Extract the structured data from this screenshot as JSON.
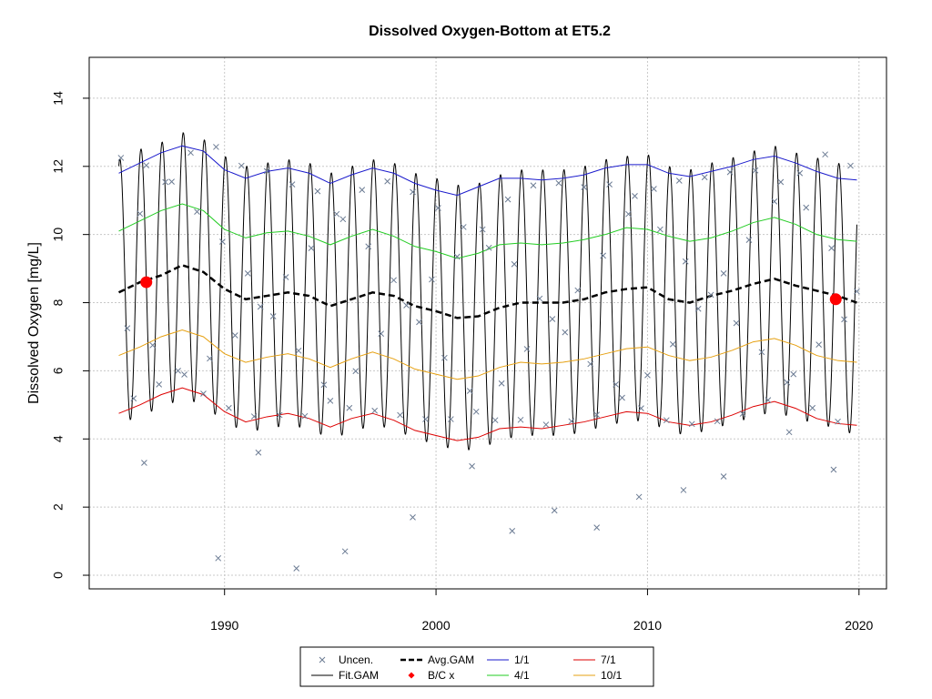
{
  "chart_data": {
    "type": "line",
    "title": "Dissolved Oxygen-Bottom at ET5.2",
    "xlabel": "",
    "ylabel": "Dissolved Oxygen [mg/L]",
    "xlim": [
      1983.6,
      2021.3
    ],
    "ylim": [
      -0.4,
      15.2
    ],
    "x_ticks": [
      1990,
      2000,
      2010,
      2020
    ],
    "y_ticks": [
      0,
      2,
      4,
      6,
      8,
      10,
      12,
      14
    ],
    "grid": true,
    "legend_position": "bottom-center",
    "legend": [
      {
        "label": "Uncen.",
        "kind": "x-marker",
        "color": "#6b7b93"
      },
      {
        "label": "Fit.GAM",
        "kind": "line",
        "color": "#000000"
      },
      {
        "label": "Avg.GAM",
        "kind": "dashed",
        "color": "#000000"
      },
      {
        "label": "B/C x",
        "kind": "dot",
        "color": "#ff0000"
      },
      {
        "label": "1/1",
        "kind": "line",
        "color": "#1a1acc"
      },
      {
        "label": "4/1",
        "kind": "line",
        "color": "#22cc22"
      },
      {
        "label": "7/1",
        "kind": "line",
        "color": "#dd0000"
      },
      {
        "label": "10/1",
        "kind": "line",
        "color": "#e6a010"
      }
    ],
    "x_range": [
      1985,
      2019.9
    ],
    "seasonal_amplitude": 3.9,
    "avg_gam": {
      "x": [
        1985,
        1986,
        1987,
        1988,
        1989,
        1990,
        1991,
        1992,
        1993,
        1994,
        1995,
        1996,
        1997,
        1998,
        1999,
        2000,
        2001,
        2002,
        2003,
        2004,
        2005,
        2006,
        2007,
        2008,
        2009,
        2010,
        2011,
        2012,
        2013,
        2014,
        2015,
        2016,
        2017,
        2018,
        2019,
        2019.9
      ],
      "y": [
        8.3,
        8.6,
        8.8,
        9.1,
        8.9,
        8.4,
        8.1,
        8.2,
        8.3,
        8.2,
        7.9,
        8.1,
        8.3,
        8.2,
        7.9,
        7.75,
        7.55,
        7.6,
        7.85,
        8.0,
        8.0,
        8.0,
        8.1,
        8.3,
        8.4,
        8.45,
        8.1,
        8.0,
        8.2,
        8.35,
        8.55,
        8.7,
        8.5,
        8.35,
        8.2,
        8.0
      ]
    },
    "bc_points": [
      {
        "x": 1986.3,
        "y": 8.6
      },
      {
        "x": 2018.9,
        "y": 8.1
      }
    ],
    "series": [
      {
        "name": "1/1",
        "color": "#1a1acc",
        "x": [
          1985,
          1986,
          1987,
          1988,
          1989,
          1990,
          1991,
          1992,
          1993,
          1994,
          1995,
          1996,
          1997,
          1998,
          1999,
          2000,
          2001,
          2002,
          2003,
          2004,
          2005,
          2006,
          2007,
          2008,
          2009,
          2010,
          2011,
          2012,
          2013,
          2014,
          2015,
          2016,
          2017,
          2018,
          2019,
          2019.9
        ],
        "y": [
          11.8,
          12.1,
          12.4,
          12.6,
          12.45,
          11.9,
          11.65,
          11.85,
          11.95,
          11.8,
          11.5,
          11.75,
          11.95,
          11.8,
          11.5,
          11.3,
          11.15,
          11.4,
          11.65,
          11.65,
          11.6,
          11.65,
          11.75,
          11.95,
          12.05,
          12.05,
          11.8,
          11.7,
          11.85,
          12.0,
          12.2,
          12.3,
          12.1,
          11.85,
          11.65,
          11.6
        ]
      },
      {
        "name": "4/1",
        "color": "#22cc22",
        "x": [
          1985,
          1986,
          1987,
          1988,
          1989,
          1990,
          1991,
          1992,
          1993,
          1994,
          1995,
          1996,
          1997,
          1998,
          1999,
          2000,
          2001,
          2002,
          2003,
          2004,
          2005,
          2006,
          2007,
          2008,
          2009,
          2010,
          2011,
          2012,
          2013,
          2014,
          2015,
          2016,
          2017,
          2018,
          2019,
          2019.9
        ],
        "y": [
          10.1,
          10.4,
          10.7,
          10.9,
          10.7,
          10.15,
          9.9,
          10.05,
          10.1,
          9.95,
          9.7,
          9.95,
          10.15,
          9.95,
          9.65,
          9.5,
          9.3,
          9.45,
          9.7,
          9.75,
          9.7,
          9.75,
          9.85,
          10.0,
          10.2,
          10.15,
          9.95,
          9.8,
          9.9,
          10.1,
          10.35,
          10.5,
          10.3,
          10.0,
          9.85,
          9.8
        ]
      },
      {
        "name": "7/1",
        "color": "#dd0000",
        "x": [
          1985,
          1986,
          1987,
          1988,
          1989,
          1990,
          1991,
          1992,
          1993,
          1994,
          1995,
          1996,
          1997,
          1998,
          1999,
          2000,
          2001,
          2002,
          2003,
          2004,
          2005,
          2006,
          2007,
          2008,
          2009,
          2010,
          2011,
          2012,
          2013,
          2014,
          2015,
          2016,
          2017,
          2018,
          2019,
          2019.9
        ],
        "y": [
          4.75,
          5.0,
          5.3,
          5.5,
          5.3,
          4.8,
          4.5,
          4.65,
          4.75,
          4.6,
          4.35,
          4.6,
          4.75,
          4.55,
          4.25,
          4.1,
          3.95,
          4.05,
          4.3,
          4.35,
          4.3,
          4.4,
          4.5,
          4.65,
          4.8,
          4.75,
          4.5,
          4.4,
          4.5,
          4.7,
          4.95,
          5.1,
          4.9,
          4.6,
          4.45,
          4.4
        ]
      },
      {
        "name": "10/1",
        "color": "#e6a010",
        "x": [
          1985,
          1986,
          1987,
          1988,
          1989,
          1990,
          1991,
          1992,
          1993,
          1994,
          1995,
          1996,
          1997,
          1998,
          1999,
          2000,
          2001,
          2002,
          2003,
          2004,
          2005,
          2006,
          2007,
          2008,
          2009,
          2010,
          2011,
          2012,
          2013,
          2014,
          2015,
          2016,
          2017,
          2018,
          2019,
          2019.9
        ],
        "y": [
          6.45,
          6.7,
          7.0,
          7.2,
          7.0,
          6.5,
          6.25,
          6.4,
          6.5,
          6.35,
          6.1,
          6.35,
          6.55,
          6.35,
          6.05,
          5.9,
          5.75,
          5.85,
          6.1,
          6.25,
          6.2,
          6.25,
          6.35,
          6.5,
          6.65,
          6.7,
          6.45,
          6.3,
          6.4,
          6.6,
          6.85,
          6.95,
          6.75,
          6.45,
          6.3,
          6.25
        ]
      }
    ],
    "observations": {
      "x": [
        1985.1,
        1985.4,
        1985.7,
        1986.0,
        1986.3,
        1986.6,
        1986.9,
        1987.2,
        1987.5,
        1987.8,
        1988.1,
        1988.4,
        1988.7,
        1989.0,
        1989.3,
        1989.6,
        1989.9,
        1990.2,
        1990.5,
        1990.8,
        1991.1,
        1991.4,
        1991.7,
        1992.0,
        1992.3,
        1992.6,
        1992.9,
        1993.2,
        1993.5,
        1993.8,
        1994.1,
        1994.4,
        1994.7,
        1995.0,
        1995.3,
        1995.6,
        1995.9,
        1996.2,
        1996.5,
        1996.8,
        1997.1,
        1997.4,
        1997.7,
        1998.0,
        1998.3,
        1998.6,
        1998.9,
        1999.2,
        1999.5,
        1999.8,
        2000.1,
        2000.4,
        2000.7,
        2001.0,
        2001.3,
        2001.6,
        2001.9,
        2002.2,
        2002.5,
        2002.8,
        2003.1,
        2003.4,
        2003.7,
        2004.0,
        2004.3,
        2004.6,
        2004.9,
        2005.2,
        2005.5,
        2005.8,
        2006.1,
        2006.4,
        2006.7,
        2007.0,
        2007.3,
        2007.6,
        2007.9,
        2008.2,
        2008.5,
        2008.8,
        2009.1,
        2009.4,
        2009.7,
        2010.0,
        2010.3,
        2010.6,
        2010.9,
        2011.2,
        2011.5,
        2011.8,
        2012.1,
        2012.4,
        2012.7,
        2013.0,
        2013.3,
        2013.6,
        2013.9,
        2014.2,
        2014.5,
        2014.8,
        2015.1,
        2015.4,
        2015.7,
        2016.0,
        2016.3,
        2016.6,
        2016.9,
        2017.2,
        2017.5,
        2017.8,
        2018.1,
        2018.4,
        2018.7,
        2019.0,
        2019.3,
        2019.6,
        2019.9,
        1986.2,
        1989.7,
        1991.6,
        1993.4,
        1995.7,
        1998.9,
        2001.7,
        2003.6,
        2005.6,
        2007.6,
        2009.6,
        2011.7,
        2013.6,
        2016.7,
        2018.8
      ],
      "y": [
        12.25,
        7.25,
        5.19,
        10.61,
        12.03,
        6.75,
        5.6,
        11.54,
        11.55,
        6.0,
        5.89,
        12.4,
        10.67,
        5.33,
        6.36,
        12.57,
        9.79,
        4.91,
        7.04,
        12.02,
        8.86,
        4.66,
        7.88,
        11.86,
        7.6,
        4.7,
        8.75,
        11.47,
        6.59,
        4.67,
        9.6,
        11.27,
        5.59,
        5.12,
        10.6,
        10.45,
        4.91,
        5.99,
        11.31,
        9.65,
        4.83,
        7.09,
        11.56,
        8.66,
        4.7,
        7.92,
        11.25,
        7.43,
        4.58,
        8.68,
        10.78,
        6.38,
        4.58,
        9.35,
        10.22,
        5.41,
        4.8,
        10.15,
        9.61,
        4.55,
        5.63,
        11.03,
        9.13,
        4.56,
        6.64,
        11.44,
        8.12,
        4.42,
        7.52,
        11.51,
        7.13,
        4.52,
        8.36,
        11.39,
        6.2,
        4.71,
        9.38,
        11.47,
        5.6,
        5.21,
        10.6,
        11.13,
        4.9,
        5.87,
        11.34,
        10.15,
        4.55,
        6.78,
        11.58,
        9.21,
        4.44,
        7.82,
        11.68,
        8.23,
        4.52,
        8.86,
        11.83,
        7.4,
        4.74,
        9.84,
        11.88,
        6.55,
        5.14,
        10.97,
        11.54,
        5.66,
        5.9,
        11.8,
        10.79,
        4.91,
        6.77,
        12.35,
        9.6,
        4.51,
        7.51,
        12.02,
        8.33,
        3.3,
        0.5,
        3.6,
        0.2,
        0.7,
        1.7,
        3.2,
        1.3,
        1.9,
        1.4,
        2.3,
        2.5,
        2.9,
        4.2,
        3.1
      ]
    }
  }
}
